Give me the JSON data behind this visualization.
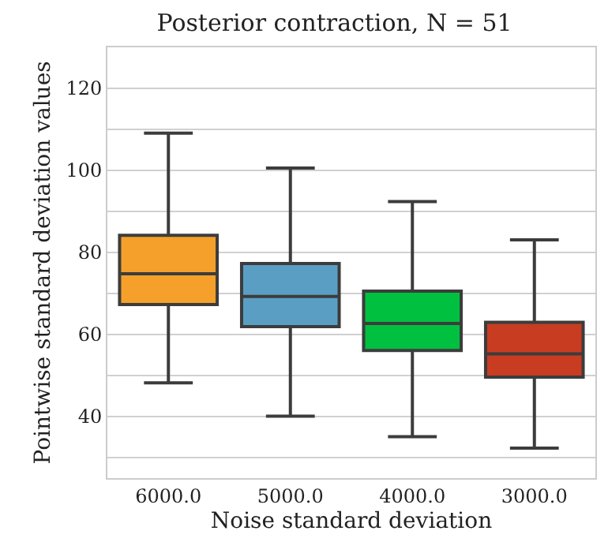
{
  "chart_data": {
    "type": "box",
    "title": "Posterior contraction, N = 51",
    "xlabel": "Noise standard deviation",
    "ylabel": "Pointwise standard deviation values",
    "categories": [
      "6000.0",
      "5000.0",
      "4000.0",
      "3000.0"
    ],
    "boxes": [
      {
        "low": 48.2,
        "q1": 67.3,
        "median": 74.8,
        "q3": 84.2,
        "high": 109.1
      },
      {
        "low": 40.1,
        "q1": 61.9,
        "median": 69.3,
        "q3": 77.3,
        "high": 100.6
      },
      {
        "low": 35.1,
        "q1": 56.1,
        "median": 62.7,
        "q3": 70.6,
        "high": 92.4
      },
      {
        "low": 32.3,
        "q1": 49.6,
        "median": 55.3,
        "q3": 63.0,
        "high": 83.1
      }
    ],
    "colors": [
      "#f5a02a",
      "#5a9ec4",
      "#00c040",
      "#c83c22"
    ],
    "ylim": [
      25,
      130
    ],
    "yticks": [
      {
        "value": 30,
        "label": null
      },
      40,
      {
        "value": 50,
        "label": null
      },
      60,
      {
        "value": 70,
        "label": null
      },
      80,
      {
        "value": 90,
        "label": null
      },
      100,
      {
        "value": 110,
        "label": null
      },
      120,
      {
        "value": 130,
        "label": null
      }
    ],
    "grid": "y",
    "legend": false
  }
}
